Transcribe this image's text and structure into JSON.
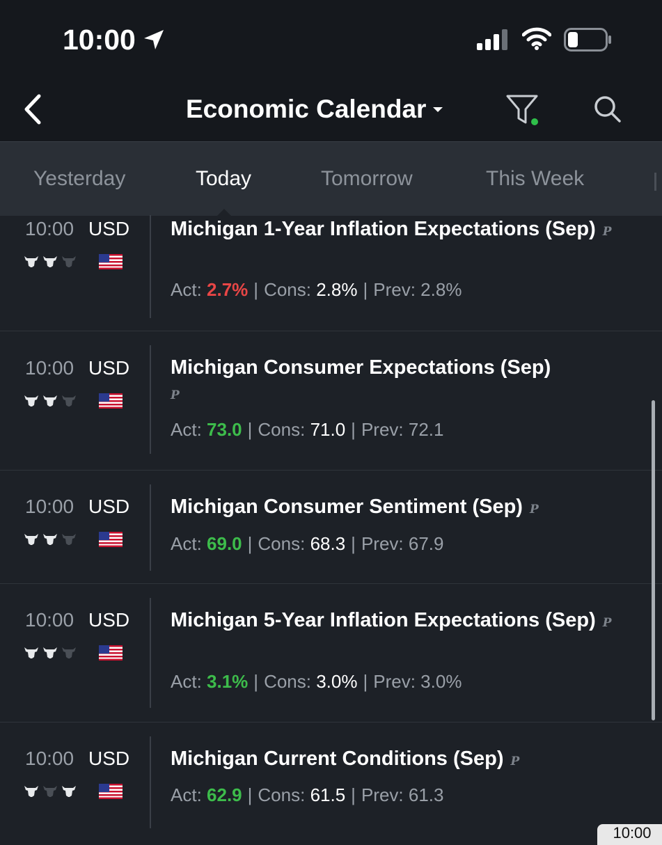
{
  "status_bar": {
    "time": "10:00",
    "location_icon": "location-arrow-icon",
    "signal_icon": "cellular-signal-icon",
    "wifi_icon": "wifi-icon",
    "battery_icon": "battery-icon"
  },
  "header": {
    "title": "Economic Calendar",
    "back_icon": "chevron-left-icon",
    "dropdown_icon": "caret-down-icon",
    "filter_icon": "funnel-icon",
    "filter_active_color": "#2fbf4a",
    "search_icon": "search-icon"
  },
  "tabs": [
    {
      "label": "Yesterday",
      "active": false
    },
    {
      "label": "Today",
      "active": true
    },
    {
      "label": "Tomorrow",
      "active": false
    },
    {
      "label": "This Week",
      "active": false
    }
  ],
  "colors": {
    "negative": "#e84646",
    "positive": "#3dbc4b",
    "background": "#1d2127",
    "header": "#15181d"
  },
  "events": [
    {
      "time": "10:00",
      "currency": "USD",
      "importance": 2,
      "flag": "us-flag-icon",
      "name": "Michigan 1-Year Inflation Expectations (Sep)",
      "preliminary": "P",
      "act_label": "Act:",
      "actual": "2.7%",
      "trend": "negative",
      "cons_label": "Cons:",
      "consensus": "2.8%",
      "prev_label": "Prev:",
      "previous": "2.8%"
    },
    {
      "time": "10:00",
      "currency": "USD",
      "importance": 2,
      "flag": "us-flag-icon",
      "name": "Michigan Consumer Expectations (Sep)",
      "preliminary": "P",
      "act_label": "Act:",
      "actual": "73.0",
      "trend": "positive",
      "cons_label": "Cons:",
      "consensus": "71.0",
      "prev_label": "Prev:",
      "previous": "72.1"
    },
    {
      "time": "10:00",
      "currency": "USD",
      "importance": 2,
      "flag": "us-flag-icon",
      "name": "Michigan Consumer Sentiment (Sep)",
      "preliminary": "P",
      "act_label": "Act:",
      "actual": "69.0",
      "trend": "positive",
      "cons_label": "Cons:",
      "consensus": "68.3",
      "prev_label": "Prev:",
      "previous": "67.9"
    },
    {
      "time": "10:00",
      "currency": "USD",
      "importance": 2,
      "flag": "us-flag-icon",
      "name": "Michigan 5-Year Inflation Expectations (Sep)",
      "preliminary": "P",
      "act_label": "Act:",
      "actual": "3.1%",
      "trend": "positive",
      "cons_label": "Cons:",
      "consensus": "3.0%",
      "prev_label": "Prev:",
      "previous": "3.0%"
    },
    {
      "time": "10:00",
      "currency": "USD",
      "importance": 2,
      "flag": "us-flag-icon",
      "name": "Michigan Current Conditions (Sep)",
      "preliminary": "P",
      "act_label": "Act:",
      "actual": "62.9",
      "trend": "positive",
      "cons_label": "Cons:",
      "consensus": "61.5",
      "prev_label": "Prev:",
      "previous": "61.3"
    }
  ],
  "peek_widget": {
    "time": "10:00"
  }
}
